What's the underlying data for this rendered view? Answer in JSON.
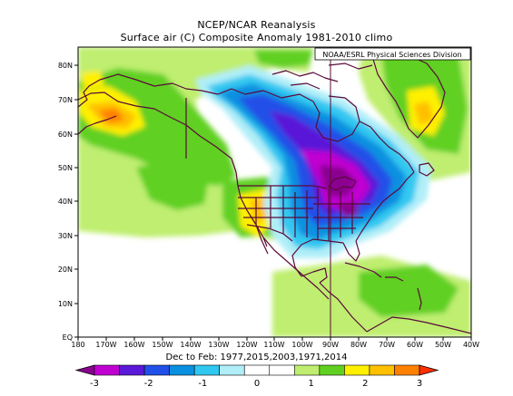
{
  "title_line1": "NCEP/NCAR Reanalysis",
  "title_line2": "Surface air (C) Composite Anomaly 1981-2010 climo",
  "credit": "NOAA/ESRL Physical Sciences Division",
  "period": "Dec to Feb: 1977,2015,2003,1971,2014",
  "map": {
    "lon_range": [
      -180,
      -40
    ],
    "lat_range": [
      0,
      85
    ],
    "lat_ticks": [
      "80N",
      "70N",
      "60N",
      "50N",
      "40N",
      "30N",
      "20N",
      "10N",
      "EQ"
    ],
    "lon_ticks": [
      "180",
      "170W",
      "160W",
      "150W",
      "140W",
      "130W",
      "120W",
      "110W",
      "100W",
      "90W",
      "80W",
      "70W",
      "60W",
      "50W",
      "40W"
    ]
  },
  "colorbar": {
    "labels": [
      "-3",
      "-2",
      "-1",
      "0",
      "1",
      "2",
      "3"
    ],
    "colors": [
      "#8b0090",
      "#c000d0",
      "#5a18d8",
      "#2050e8",
      "#0a90e0",
      "#30c8f0",
      "#b0eef8",
      "#ffffff",
      "#ffffff",
      "#bfee70",
      "#60d020",
      "#fff000",
      "#ffc000",
      "#ff8000",
      "#ff3000"
    ]
  },
  "palette": {
    "purple_dark": "#8b0090",
    "magenta": "#c000d0",
    "blue_violet": "#5a18d8",
    "blue": "#2050e8",
    "sky": "#0a90e0",
    "cyan": "#30c8f0",
    "light_cyan": "#b0eef8",
    "white": "#ffffff",
    "light_green": "#bfee70",
    "green": "#60d020",
    "yellow": "#fff000",
    "gold": "#ffc000",
    "orange": "#ff8000",
    "red": "#ff3000",
    "coast": "#5a0a3a"
  }
}
